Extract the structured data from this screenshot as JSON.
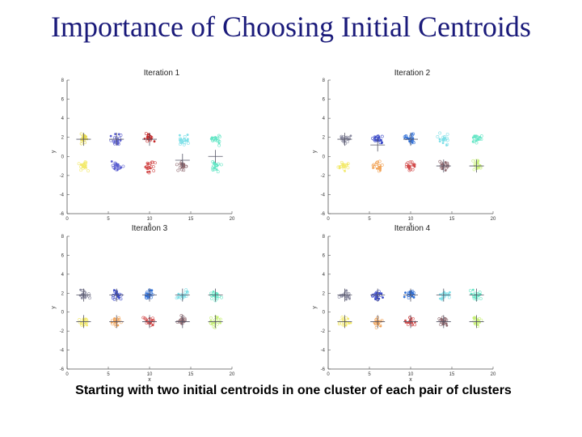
{
  "slide": {
    "title": "Importance of Choosing Initial Centroids",
    "caption": "Starting with two initial centroids in one cluster of each pair of clusters"
  },
  "chart_data": [
    {
      "type": "scatter",
      "title": "Iteration 1",
      "xlabel": "x",
      "ylabel": "y",
      "xlim": [
        0,
        20
      ],
      "ylim": [
        -6,
        8
      ],
      "xticks": [
        0,
        5,
        10,
        15,
        20
      ],
      "yticks": [
        8,
        6,
        4,
        2,
        0,
        -2,
        -4,
        -6
      ],
      "clusters": [
        {
          "center": [
            2,
            1.8
          ],
          "color": "#e6d84a"
        },
        {
          "center": [
            2,
            -1
          ],
          "color": "#f3ea6c"
        },
        {
          "center": [
            6,
            1.8
          ],
          "color": "#5b5fd0"
        },
        {
          "center": [
            6,
            -1
          ],
          "color": "#5b5fd0"
        },
        {
          "center": [
            10,
            1.8
          ],
          "color": "#c62828"
        },
        {
          "center": [
            10,
            -1
          ],
          "color": "#d24a4a"
        },
        {
          "center": [
            14,
            1.8
          ],
          "color": "#7fe0e8"
        },
        {
          "center": [
            14,
            -1
          ],
          "color": "#8f6a70"
        },
        {
          "center": [
            18,
            1.8
          ],
          "color": "#66e6c6"
        },
        {
          "center": [
            18,
            -1
          ],
          "color": "#66e6c6"
        }
      ],
      "centroids": [
        [
          2,
          1.8
        ],
        [
          6,
          1.8
        ],
        [
          10,
          1.8
        ],
        [
          14,
          -0.4
        ],
        [
          18,
          0
        ]
      ]
    },
    {
      "type": "scatter",
      "title": "Iteration 2",
      "xlabel": "x",
      "ylabel": "y",
      "xlim": [
        0,
        20
      ],
      "ylim": [
        -6,
        8
      ],
      "xticks": [
        0,
        5,
        10,
        15,
        20
      ],
      "yticks": [
        8,
        6,
        4,
        2,
        0,
        -2,
        -4,
        -6
      ],
      "clusters": [
        {
          "center": [
            2,
            1.8
          ],
          "color": "#8a8aa0"
        },
        {
          "center": [
            2,
            -1
          ],
          "color": "#f3ea6c"
        },
        {
          "center": [
            6,
            1.8
          ],
          "color": "#3c4bc8"
        },
        {
          "center": [
            6,
            -1
          ],
          "color": "#f2a55a"
        },
        {
          "center": [
            10,
            1.8
          ],
          "color": "#2f6fd6"
        },
        {
          "center": [
            10,
            -1
          ],
          "color": "#d24a4a"
        },
        {
          "center": [
            14,
            1.8
          ],
          "color": "#7fe0e8"
        },
        {
          "center": [
            14,
            -1
          ],
          "color": "#8f6a70"
        },
        {
          "center": [
            18,
            1.8
          ],
          "color": "#66e6c6"
        },
        {
          "center": [
            18,
            -1
          ],
          "color": "#c9f07a"
        }
      ],
      "centroids": [
        [
          2,
          1.8
        ],
        [
          6,
          1.2
        ],
        [
          10,
          1.8
        ],
        [
          14,
          -1
        ],
        [
          18,
          -1
        ]
      ]
    },
    {
      "type": "scatter",
      "title": "Iteration 3",
      "xlabel": "x",
      "ylabel": "y",
      "xlim": [
        0,
        20
      ],
      "ylim": [
        -6,
        8
      ],
      "xticks": [
        0,
        5,
        10,
        15,
        20
      ],
      "yticks": [
        8,
        6,
        4,
        2,
        0,
        -2,
        -4,
        -6
      ],
      "clusters": [
        {
          "center": [
            2,
            1.8
          ],
          "color": "#8a8aa0"
        },
        {
          "center": [
            2,
            -1
          ],
          "color": "#f3ea6c"
        },
        {
          "center": [
            6,
            1.8
          ],
          "color": "#3c4bc8"
        },
        {
          "center": [
            6,
            -1
          ],
          "color": "#f2a55a"
        },
        {
          "center": [
            10,
            1.8
          ],
          "color": "#2f6fd6"
        },
        {
          "center": [
            10,
            -1
          ],
          "color": "#d24a4a"
        },
        {
          "center": [
            14,
            1.8
          ],
          "color": "#7fe0e8"
        },
        {
          "center": [
            14,
            -1
          ],
          "color": "#8f6a70"
        },
        {
          "center": [
            18,
            1.8
          ],
          "color": "#66e6c6"
        },
        {
          "center": [
            18,
            -1
          ],
          "color": "#c9f07a"
        }
      ],
      "centroids": [
        [
          2,
          1.8
        ],
        [
          6,
          1.8
        ],
        [
          10,
          1.8
        ],
        [
          14,
          1.8
        ],
        [
          18,
          1.8
        ],
        [
          2,
          -1
        ],
        [
          6,
          -1
        ],
        [
          10,
          -1
        ],
        [
          14,
          -1
        ],
        [
          18,
          -1
        ]
      ]
    },
    {
      "type": "scatter",
      "title": "Iteration 4",
      "xlabel": "x",
      "ylabel": "y",
      "xlim": [
        0,
        20
      ],
      "ylim": [
        -6,
        8
      ],
      "xticks": [
        0,
        5,
        10,
        15,
        20
      ],
      "yticks": [
        8,
        6,
        4,
        2,
        0,
        -2,
        -4,
        -6
      ],
      "clusters": [
        {
          "center": [
            2,
            1.8
          ],
          "color": "#8a8aa0"
        },
        {
          "center": [
            2,
            -1
          ],
          "color": "#f3ea6c"
        },
        {
          "center": [
            6,
            1.8
          ],
          "color": "#3c4bc8"
        },
        {
          "center": [
            6,
            -1
          ],
          "color": "#f2a55a"
        },
        {
          "center": [
            10,
            1.8
          ],
          "color": "#2f6fd6"
        },
        {
          "center": [
            10,
            -1
          ],
          "color": "#d24a4a"
        },
        {
          "center": [
            14,
            1.8
          ],
          "color": "#7fe0e8"
        },
        {
          "center": [
            14,
            -1
          ],
          "color": "#8f6a70"
        },
        {
          "center": [
            18,
            1.8
          ],
          "color": "#66e6c6"
        },
        {
          "center": [
            18,
            -1
          ],
          "color": "#c9f07a"
        }
      ],
      "centroids": [
        [
          2,
          1.8
        ],
        [
          6,
          1.8
        ],
        [
          10,
          1.8
        ],
        [
          14,
          1.8
        ],
        [
          18,
          1.8
        ],
        [
          2,
          -1
        ],
        [
          6,
          -1
        ],
        [
          10,
          -1
        ],
        [
          14,
          -1
        ],
        [
          18,
          -1
        ]
      ]
    }
  ]
}
